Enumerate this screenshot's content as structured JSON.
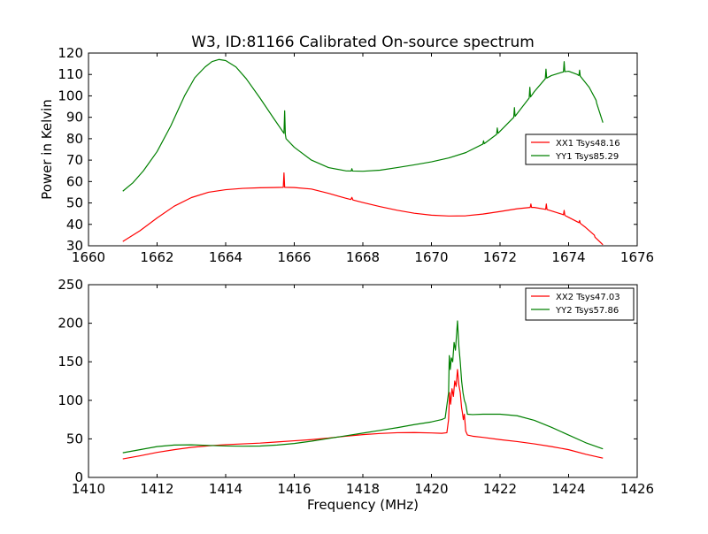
{
  "chart_data": [
    {
      "type": "line",
      "title": "W3, ID:81166 Calibrated On-source spectrum",
      "xlabel": "",
      "ylabel": "Power in Kelvin",
      "xlim": [
        1660,
        1676
      ],
      "ylim": [
        30,
        120
      ],
      "xticks": [
        1660,
        1662,
        1664,
        1666,
        1668,
        1670,
        1672,
        1674,
        1676
      ],
      "yticks": [
        30,
        40,
        50,
        60,
        70,
        80,
        90,
        100,
        110,
        120
      ],
      "legend_position": "center-right",
      "series": [
        {
          "name": "XX1 Tsys48.16",
          "color": "#ff0000",
          "points": [
            [
              1661.0,
              32
            ],
            [
              1661.5,
              37
            ],
            [
              1662.0,
              43
            ],
            [
              1662.5,
              48.5
            ],
            [
              1663.0,
              52.5
            ],
            [
              1663.5,
              55
            ],
            [
              1664.0,
              56.2
            ],
            [
              1664.5,
              56.8
            ],
            [
              1665.0,
              57.1
            ],
            [
              1665.4,
              57.2
            ],
            [
              1665.68,
              57.3
            ],
            [
              1665.7,
              64
            ],
            [
              1665.72,
              57.3
            ],
            [
              1666.0,
              57.2
            ],
            [
              1666.5,
              56.5
            ],
            [
              1667.0,
              54.5
            ],
            [
              1667.5,
              52.2
            ],
            [
              1667.65,
              51.6
            ],
            [
              1667.68,
              52.6
            ],
            [
              1667.71,
              51.4
            ],
            [
              1668.0,
              50.2
            ],
            [
              1668.5,
              48.3
            ],
            [
              1669.0,
              46.6
            ],
            [
              1669.5,
              45.2
            ],
            [
              1670.0,
              44.3
            ],
            [
              1670.5,
              43.9
            ],
            [
              1671.0,
              44.0
            ],
            [
              1671.5,
              44.8
            ],
            [
              1672.0,
              46.0
            ],
            [
              1672.5,
              47.3
            ],
            [
              1672.88,
              47.9
            ],
            [
              1672.9,
              49.5
            ],
            [
              1672.92,
              47.9
            ],
            [
              1673.0,
              47.9
            ],
            [
              1673.33,
              47.0
            ],
            [
              1673.35,
              49.5
            ],
            [
              1673.37,
              46.9
            ],
            [
              1673.5,
              46.3
            ],
            [
              1673.85,
              44.5
            ],
            [
              1673.87,
              46.5
            ],
            [
              1673.89,
              44.2
            ],
            [
              1674.0,
              43.3
            ],
            [
              1674.3,
              40.8
            ],
            [
              1674.32,
              41.8
            ],
            [
              1674.34,
              40.5
            ],
            [
              1674.5,
              38.5
            ],
            [
              1674.75,
              35
            ],
            [
              1674.77,
              34
            ],
            [
              1675.0,
              30.5
            ]
          ]
        },
        {
          "name": "YY1 Tsys85.29",
          "color": "#008000",
          "points": [
            [
              1661.0,
              55.5
            ],
            [
              1661.3,
              59.5
            ],
            [
              1661.6,
              65
            ],
            [
              1662.0,
              74
            ],
            [
              1662.4,
              86
            ],
            [
              1662.8,
              100
            ],
            [
              1663.1,
              108.5
            ],
            [
              1663.4,
              113.5
            ],
            [
              1663.6,
              116
            ],
            [
              1663.8,
              117
            ],
            [
              1664.0,
              116.5
            ],
            [
              1664.3,
              113.5
            ],
            [
              1664.6,
              108
            ],
            [
              1665.0,
              99
            ],
            [
              1665.4,
              89.5
            ],
            [
              1665.7,
              82.5
            ],
            [
              1665.72,
              93
            ],
            [
              1665.74,
              82
            ],
            [
              1665.76,
              80
            ],
            [
              1666.0,
              76
            ],
            [
              1666.5,
              70
            ],
            [
              1667.0,
              66.5
            ],
            [
              1667.5,
              65
            ],
            [
              1667.66,
              64.9
            ],
            [
              1667.68,
              66
            ],
            [
              1667.7,
              64.9
            ],
            [
              1668.0,
              64.8
            ],
            [
              1668.5,
              65.3
            ],
            [
              1669.0,
              66.5
            ],
            [
              1669.5,
              67.8
            ],
            [
              1670.0,
              69.2
            ],
            [
              1670.5,
              71
            ],
            [
              1671.0,
              73.5
            ],
            [
              1671.5,
              77.5
            ],
            [
              1671.52,
              79
            ],
            [
              1671.54,
              77.7
            ],
            [
              1671.9,
              82
            ],
            [
              1671.92,
              85
            ],
            [
              1671.94,
              82.5
            ],
            [
              1672.4,
              90
            ],
            [
              1672.42,
              94.5
            ],
            [
              1672.44,
              90.5
            ],
            [
              1672.85,
              99
            ],
            [
              1672.87,
              104
            ],
            [
              1672.89,
              99.5
            ],
            [
              1673.0,
              102
            ],
            [
              1673.32,
              108
            ],
            [
              1673.34,
              112.5
            ],
            [
              1673.36,
              108.3
            ],
            [
              1673.5,
              109.5
            ],
            [
              1673.8,
              111
            ],
            [
              1673.85,
              111.2
            ],
            [
              1673.87,
              116
            ],
            [
              1673.89,
              111.3
            ],
            [
              1674.0,
              111.5
            ],
            [
              1674.25,
              110
            ],
            [
              1674.3,
              109.5
            ],
            [
              1674.32,
              112
            ],
            [
              1674.34,
              109.2
            ],
            [
              1674.6,
              104
            ],
            [
              1674.8,
              98
            ],
            [
              1674.82,
              96.5
            ],
            [
              1675.0,
              87.5
            ]
          ]
        }
      ]
    },
    {
      "type": "line",
      "title": "",
      "xlabel": "Frequency (MHz)",
      "ylabel": "",
      "xlim": [
        1410,
        1426
      ],
      "ylim": [
        0,
        250
      ],
      "xticks": [
        1410,
        1412,
        1414,
        1416,
        1418,
        1420,
        1422,
        1424,
        1426
      ],
      "yticks": [
        0,
        50,
        100,
        150,
        200,
        250
      ],
      "legend_position": "top-right",
      "series": [
        {
          "name": "XX2 Tsys47.03",
          "color": "#ff0000",
          "points": [
            [
              1411.0,
              24
            ],
            [
              1411.5,
              28
            ],
            [
              1412.0,
              32.5
            ],
            [
              1412.5,
              36
            ],
            [
              1413.0,
              39
            ],
            [
              1413.5,
              41
            ],
            [
              1414.0,
              42.5
            ],
            [
              1414.5,
              43.5
            ],
            [
              1415.0,
              44.5
            ],
            [
              1415.5,
              46
            ],
            [
              1416.0,
              47.5
            ],
            [
              1416.5,
              49
            ],
            [
              1417.0,
              51
            ],
            [
              1417.5,
              53.5
            ],
            [
              1418.0,
              55.5
            ],
            [
              1418.5,
              57
            ],
            [
              1419.0,
              58
            ],
            [
              1419.5,
              58.2
            ],
            [
              1420.0,
              57.7
            ],
            [
              1420.3,
              57.2
            ],
            [
              1420.45,
              58
            ],
            [
              1420.5,
              75
            ],
            [
              1420.53,
              110
            ],
            [
              1420.56,
              95
            ],
            [
              1420.6,
              115
            ],
            [
              1420.64,
              105
            ],
            [
              1420.68,
              125
            ],
            [
              1420.72,
              118
            ],
            [
              1420.76,
              140
            ],
            [
              1420.8,
              120
            ],
            [
              1420.84,
              110
            ],
            [
              1420.88,
              90
            ],
            [
              1420.9,
              85
            ],
            [
              1420.93,
              75
            ],
            [
              1420.96,
              82
            ],
            [
              1421.0,
              60
            ],
            [
              1421.05,
              55
            ],
            [
              1421.2,
              53.5
            ],
            [
              1421.5,
              52
            ],
            [
              1422.0,
              49
            ],
            [
              1422.5,
              46.5
            ],
            [
              1423.0,
              43.5
            ],
            [
              1423.5,
              40
            ],
            [
              1424.0,
              36
            ],
            [
              1424.5,
              30
            ],
            [
              1425.0,
              25
            ]
          ]
        },
        {
          "name": "YY2 Tsys57.86",
          "color": "#008000",
          "points": [
            [
              1411.0,
              32
            ],
            [
              1411.5,
              36
            ],
            [
              1412.0,
              40
            ],
            [
              1412.5,
              42
            ],
            [
              1413.0,
              42.3
            ],
            [
              1413.5,
              41.5
            ],
            [
              1414.0,
              40.8
            ],
            [
              1414.5,
              40.5
            ],
            [
              1415.0,
              40.7
            ],
            [
              1415.5,
              42
            ],
            [
              1416.0,
              44
            ],
            [
              1416.5,
              47
            ],
            [
              1417.0,
              50.5
            ],
            [
              1417.5,
              54
            ],
            [
              1418.0,
              57.5
            ],
            [
              1418.5,
              61
            ],
            [
              1419.0,
              64.5
            ],
            [
              1419.5,
              68.5
            ],
            [
              1420.0,
              72
            ],
            [
              1420.3,
              75
            ],
            [
              1420.4,
              77
            ],
            [
              1420.5,
              110
            ],
            [
              1420.52,
              158
            ],
            [
              1420.55,
              140
            ],
            [
              1420.58,
              155
            ],
            [
              1420.62,
              150
            ],
            [
              1420.66,
              175
            ],
            [
              1420.7,
              165
            ],
            [
              1420.74,
              190
            ],
            [
              1420.76,
              203
            ],
            [
              1420.8,
              170
            ],
            [
              1420.84,
              150
            ],
            [
              1420.88,
              125
            ],
            [
              1420.92,
              110
            ],
            [
              1420.96,
              100
            ],
            [
              1421.0,
              95
            ],
            [
              1421.05,
              82
            ],
            [
              1421.2,
              81.5
            ],
            [
              1421.5,
              82
            ],
            [
              1422.0,
              82
            ],
            [
              1422.5,
              80
            ],
            [
              1423.0,
              74
            ],
            [
              1423.5,
              65
            ],
            [
              1424.0,
              55
            ],
            [
              1424.5,
              45
            ],
            [
              1425.0,
              37
            ]
          ]
        }
      ]
    }
  ]
}
